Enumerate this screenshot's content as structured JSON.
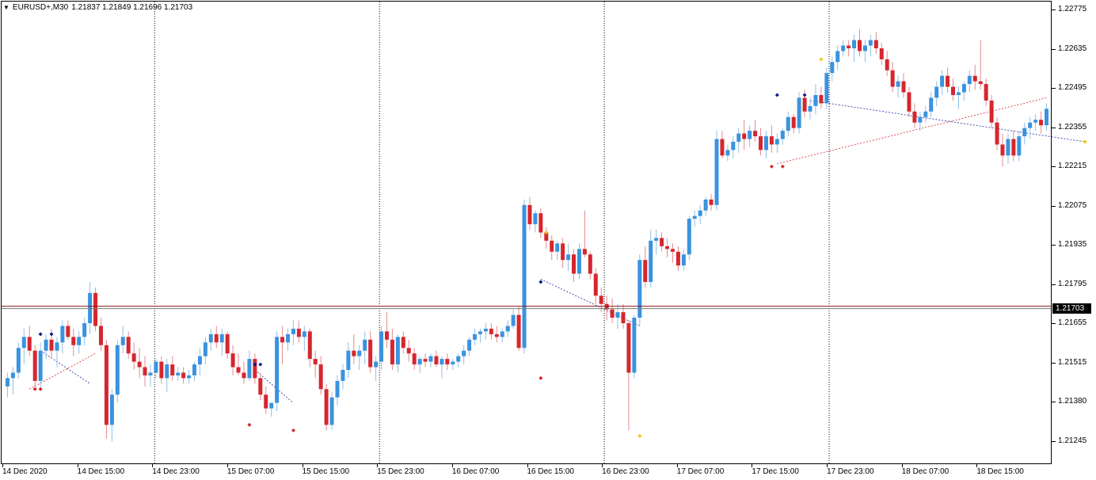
{
  "header": {
    "symbol_timeframe": "EURUSD+,M30",
    "ohlc": "1.21837 1.21849 1.21696 1.21703",
    "menu_glyph": "▼"
  },
  "colors": {
    "bull": "#3a93df",
    "bear": "#d6262e",
    "grid": "#000000",
    "bid_line": "#8b1a1a",
    "ask_line": "#7a7a7a",
    "fractal_up": "#0a1a8c",
    "fractal_down": "#d6262e",
    "marker_yellow": "#f2c200",
    "trend_blue": "#1b2aa0",
    "trend_red": "#d6262e"
  },
  "price_axis": {
    "ticks": [
      "1.22775",
      "1.22635",
      "1.22495",
      "1.22355",
      "1.22215",
      "1.22075",
      "1.21935",
      "1.21795",
      "1.21655",
      "1.21515",
      "1.21380",
      "1.21245"
    ],
    "current_bid": "1.21703"
  },
  "time_axis": {
    "labels": [
      "14 Dec 2020",
      "14 Dec 15:00",
      "14 Dec 23:00",
      "15 Dec 07:00",
      "15 Dec 15:00",
      "15 Dec 23:00",
      "16 Dec 07:00",
      "16 Dec 15:00",
      "16 Dec 23:00",
      "17 Dec 07:00",
      "17 Dec 15:00",
      "17 Dec 23:00",
      "18 Dec 07:00",
      "18 Dec 15:00"
    ]
  },
  "chart_data": {
    "type": "candlestick",
    "symbol": "EURUSD+",
    "timeframe": "M30",
    "last_bar": {
      "open": 1.21837,
      "high": 1.21849,
      "low": 1.21696,
      "close": 1.21703
    },
    "current_price": 1.21703,
    "y_range": [
      1.2114,
      1.2282
    ],
    "day_separators_at": [
      "14 Dec 23:00",
      "15 Dec 23:00",
      "16 Dec 23:00",
      "17 Dec 23:00"
    ],
    "candles": [
      [
        1.2142,
        1.2147,
        1.2138,
        1.2145
      ],
      [
        1.2145,
        1.2149,
        1.2139,
        1.2147
      ],
      [
        1.2147,
        1.2158,
        1.2145,
        1.2156
      ],
      [
        1.2156,
        1.2163,
        1.215,
        1.216
      ],
      [
        1.216,
        1.2164,
        1.2153,
        1.2155
      ],
      [
        1.2155,
        1.2157,
        1.2141,
        1.2144
      ],
      [
        1.2144,
        1.2158,
        1.2141,
        1.2155
      ],
      [
        1.2155,
        1.2161,
        1.2152,
        1.2159
      ],
      [
        1.2159,
        1.2163,
        1.2152,
        1.2155
      ],
      [
        1.2155,
        1.216,
        1.2149,
        1.2158
      ],
      [
        1.2158,
        1.2166,
        1.2154,
        1.2164
      ],
      [
        1.2164,
        1.2166,
        1.2159,
        1.216
      ],
      [
        1.216,
        1.2163,
        1.2153,
        1.2157
      ],
      [
        1.2157,
        1.2162,
        1.2154,
        1.216
      ],
      [
        1.216,
        1.2167,
        1.2157,
        1.2165
      ],
      [
        1.2165,
        1.218,
        1.2161,
        1.2176
      ],
      [
        1.2176,
        1.2178,
        1.2162,
        1.2164
      ],
      [
        1.2164,
        1.2167,
        1.2155,
        1.2157
      ],
      [
        1.2157,
        1.2159,
        1.2123,
        1.2128
      ],
      [
        1.2128,
        1.2141,
        1.2122,
        1.2139
      ],
      [
        1.2139,
        1.2159,
        1.2136,
        1.2157
      ],
      [
        1.2157,
        1.2164,
        1.2154,
        1.216
      ],
      [
        1.216,
        1.2162,
        1.2152,
        1.2154
      ],
      [
        1.2154,
        1.2158,
        1.2148,
        1.2151
      ],
      [
        1.2151,
        1.2156,
        1.2145,
        1.2149
      ],
      [
        1.2149,
        1.2153,
        1.2142,
        1.2146
      ],
      [
        1.2146,
        1.215,
        1.2142,
        1.2147
      ],
      [
        1.2147,
        1.2152,
        1.2145,
        1.2151
      ],
      [
        1.2151,
        1.2153,
        1.2143,
        1.2145
      ],
      [
        1.2145,
        1.2152,
        1.214,
        1.215
      ],
      [
        1.215,
        1.2153,
        1.2144,
        1.2146
      ],
      [
        1.2146,
        1.2149,
        1.2144,
        1.2147
      ],
      [
        1.2147,
        1.2149,
        1.2143,
        1.2145
      ],
      [
        1.2145,
        1.2148,
        1.2143,
        1.2146
      ],
      [
        1.2146,
        1.2151,
        1.2144,
        1.215
      ],
      [
        1.215,
        1.2156,
        1.2146,
        1.2153
      ],
      [
        1.2153,
        1.216,
        1.215,
        1.2158
      ],
      [
        1.2158,
        1.2163,
        1.2155,
        1.2161
      ],
      [
        1.2161,
        1.2164,
        1.2156,
        1.2158
      ],
      [
        1.2158,
        1.2163,
        1.2153,
        1.2161
      ],
      [
        1.2161,
        1.2162,
        1.2152,
        1.2154
      ],
      [
        1.2154,
        1.2157,
        1.2146,
        1.2149
      ],
      [
        1.2149,
        1.2154,
        1.2146,
        1.2147
      ],
      [
        1.2147,
        1.2151,
        1.2143,
        1.2145
      ],
      [
        1.2145,
        1.2155,
        1.2144,
        1.2152
      ],
      [
        1.2152,
        1.2154,
        1.2143,
        1.2145
      ],
      [
        1.2145,
        1.2147,
        1.2137,
        1.2139
      ],
      [
        1.2139,
        1.2142,
        1.2132,
        1.2134
      ],
      [
        1.2134,
        1.2136,
        1.2131,
        1.2136
      ],
      [
        1.2136,
        1.2162,
        1.2133,
        1.216
      ],
      [
        1.216,
        1.2164,
        1.215,
        1.2158
      ],
      [
        1.2158,
        1.2163,
        1.2155,
        1.2161
      ],
      [
        1.2161,
        1.2166,
        1.2157,
        1.2163
      ],
      [
        1.2163,
        1.2166,
        1.2158,
        1.216
      ],
      [
        1.216,
        1.2164,
        1.2155,
        1.2162
      ],
      [
        1.2162,
        1.2163,
        1.2149,
        1.2152
      ],
      [
        1.2152,
        1.2155,
        1.2145,
        1.215
      ],
      [
        1.215,
        1.2153,
        1.2139,
        1.2141
      ],
      [
        1.2141,
        1.2143,
        1.2126,
        1.2128
      ],
      [
        1.2128,
        1.214,
        1.2126,
        1.2138
      ],
      [
        1.2138,
        1.2146,
        1.2135,
        1.2144
      ],
      [
        1.2144,
        1.215,
        1.2141,
        1.2148
      ],
      [
        1.2148,
        1.2158,
        1.2145,
        1.2155
      ],
      [
        1.2155,
        1.2161,
        1.215,
        1.2153
      ],
      [
        1.2153,
        1.2157,
        1.2148,
        1.2155
      ],
      [
        1.2155,
        1.2162,
        1.215,
        1.2159
      ],
      [
        1.2159,
        1.2162,
        1.2147,
        1.2149
      ],
      [
        1.2149,
        1.2153,
        1.2144,
        1.2151
      ],
      [
        1.2151,
        1.2164,
        1.2148,
        1.2162
      ],
      [
        1.2162,
        1.2169,
        1.2156,
        1.2159
      ],
      [
        1.2159,
        1.2163,
        1.2148,
        1.215
      ],
      [
        1.215,
        1.2161,
        1.2147,
        1.216
      ],
      [
        1.216,
        1.2162,
        1.2154,
        1.2156
      ],
      [
        1.2156,
        1.2159,
        1.2151,
        1.2154
      ],
      [
        1.2154,
        1.2156,
        1.2148,
        1.215
      ],
      [
        1.215,
        1.2153,
        1.2147,
        1.2152
      ],
      [
        1.2152,
        1.2154,
        1.2149,
        1.2151
      ],
      [
        1.2151,
        1.2154,
        1.2149,
        1.2153
      ],
      [
        1.2153,
        1.2155,
        1.2149,
        1.215
      ],
      [
        1.215,
        1.2153,
        1.2145,
        1.2152
      ],
      [
        1.2152,
        1.2154,
        1.2148,
        1.215
      ],
      [
        1.215,
        1.2152,
        1.2148,
        1.2151
      ],
      [
        1.2151,
        1.2154,
        1.2149,
        1.2153
      ],
      [
        1.2153,
        1.2157,
        1.215,
        1.2155
      ],
      [
        1.2155,
        1.216,
        1.2153,
        1.2159
      ],
      [
        1.2159,
        1.2163,
        1.2157,
        1.2161
      ],
      [
        1.2161,
        1.2163,
        1.2158,
        1.2162
      ],
      [
        1.2162,
        1.2165,
        1.2159,
        1.2163
      ],
      [
        1.2163,
        1.2165,
        1.2159,
        1.2161
      ],
      [
        1.2161,
        1.2164,
        1.2158,
        1.216
      ],
      [
        1.216,
        1.2163,
        1.2158,
        1.2162
      ],
      [
        1.2162,
        1.2166,
        1.216,
        1.2164
      ],
      [
        1.2164,
        1.217,
        1.2163,
        1.2168
      ],
      [
        1.2168,
        1.2171,
        1.2155,
        1.2156
      ],
      [
        1.2156,
        1.221,
        1.2154,
        1.2208
      ],
      [
        1.2208,
        1.2211,
        1.2199,
        1.2201
      ],
      [
        1.2201,
        1.2206,
        1.2198,
        1.2205
      ],
      [
        1.2205,
        1.2207,
        1.2196,
        1.2198
      ],
      [
        1.2198,
        1.22,
        1.2192,
        1.2195
      ],
      [
        1.2195,
        1.2197,
        1.2188,
        1.2191
      ],
      [
        1.2191,
        1.2195,
        1.2188,
        1.2194
      ],
      [
        1.2194,
        1.2196,
        1.2185,
        1.2188
      ],
      [
        1.2188,
        1.2194,
        1.2184,
        1.219
      ],
      [
        1.219,
        1.2192,
        1.218,
        1.2183
      ],
      [
        1.2183,
        1.2194,
        1.2181,
        1.2192
      ],
      [
        1.2192,
        1.2206,
        1.2189,
        1.219
      ],
      [
        1.219,
        1.2191,
        1.2181,
        1.2183
      ],
      [
        1.2183,
        1.2185,
        1.2172,
        1.2175
      ],
      [
        1.2175,
        1.2178,
        1.2169,
        1.2172
      ],
      [
        1.2172,
        1.2175,
        1.2166,
        1.217
      ],
      [
        1.217,
        1.2174,
        1.2165,
        1.2167
      ],
      [
        1.2167,
        1.2172,
        1.2163,
        1.2169
      ],
      [
        1.2169,
        1.2172,
        1.2163,
        1.2165
      ],
      [
        1.2165,
        1.2166,
        1.2126,
        1.2147
      ],
      [
        1.2147,
        1.2168,
        1.2145,
        1.2167
      ],
      [
        1.2167,
        1.219,
        1.2164,
        1.2188
      ],
      [
        1.2188,
        1.2193,
        1.2178,
        1.218
      ],
      [
        1.218,
        1.2199,
        1.2178,
        1.2195
      ],
      [
        1.2195,
        1.2199,
        1.219,
        1.2196
      ],
      [
        1.2196,
        1.2198,
        1.2191,
        1.2193
      ],
      [
        1.2193,
        1.2196,
        1.2189,
        1.2192
      ],
      [
        1.2192,
        1.2194,
        1.2187,
        1.2191
      ],
      [
        1.2191,
        1.2193,
        1.2184,
        1.2186
      ],
      [
        1.2186,
        1.2192,
        1.2184,
        1.219
      ],
      [
        1.219,
        1.2204,
        1.2188,
        1.2203
      ],
      [
        1.2203,
        1.2206,
        1.22,
        1.2204
      ],
      [
        1.2204,
        1.2208,
        1.2201,
        1.2206
      ],
      [
        1.2206,
        1.2211,
        1.2204,
        1.221
      ],
      [
        1.221,
        1.2212,
        1.2206,
        1.2208
      ],
      [
        1.2208,
        1.2235,
        1.2206,
        1.2232
      ],
      [
        1.2232,
        1.2235,
        1.2225,
        1.2226
      ],
      [
        1.2226,
        1.223,
        1.2224,
        1.2228
      ],
      [
        1.2228,
        1.2233,
        1.2225,
        1.2231
      ],
      [
        1.2231,
        1.2236,
        1.2227,
        1.2234
      ],
      [
        1.2234,
        1.2239,
        1.2228,
        1.2232
      ],
      [
        1.2232,
        1.2237,
        1.2229,
        1.2235
      ],
      [
        1.2235,
        1.2239,
        1.2231,
        1.2233
      ],
      [
        1.2233,
        1.2236,
        1.2226,
        1.2228
      ],
      [
        1.2228,
        1.2235,
        1.2225,
        1.2233
      ],
      [
        1.2233,
        1.2237,
        1.2227,
        1.223
      ],
      [
        1.223,
        1.2234,
        1.2227,
        1.2232
      ],
      [
        1.2232,
        1.2236,
        1.223,
        1.2235
      ],
      [
        1.2235,
        1.2242,
        1.2233,
        1.224
      ],
      [
        1.224,
        1.2241,
        1.2234,
        1.2236
      ],
      [
        1.2236,
        1.2249,
        1.2234,
        1.2247
      ],
      [
        1.2247,
        1.225,
        1.224,
        1.2242
      ],
      [
        1.2242,
        1.2247,
        1.2239,
        1.2244
      ],
      [
        1.2244,
        1.2252,
        1.2241,
        1.2248
      ],
      [
        1.2248,
        1.2251,
        1.2243,
        1.2245
      ],
      [
        1.2245,
        1.2258,
        1.2243,
        1.2256
      ],
      [
        1.2256,
        1.2262,
        1.2253,
        1.226
      ],
      [
        1.226,
        1.2266,
        1.2257,
        1.2264
      ],
      [
        1.2264,
        1.2268,
        1.2262,
        1.2266
      ],
      [
        1.2266,
        1.2268,
        1.2262,
        1.2265
      ],
      [
        1.2265,
        1.227,
        1.226,
        1.2268
      ],
      [
        1.2268,
        1.2272,
        1.2262,
        1.2264
      ],
      [
        1.2264,
        1.2268,
        1.226,
        1.2266
      ],
      [
        1.2266,
        1.227,
        1.2262,
        1.2268
      ],
      [
        1.2268,
        1.2271,
        1.2263,
        1.2265
      ],
      [
        1.2265,
        1.2267,
        1.2259,
        1.2261
      ],
      [
        1.2261,
        1.2264,
        1.2255,
        1.2257
      ],
      [
        1.2257,
        1.226,
        1.2249,
        1.2251
      ],
      [
        1.2251,
        1.2255,
        1.2247,
        1.2253
      ],
      [
        1.2253,
        1.2256,
        1.2247,
        1.2249
      ],
      [
        1.2249,
        1.2251,
        1.224,
        1.2242
      ],
      [
        1.2242,
        1.2245,
        1.2236,
        1.2238
      ],
      [
        1.2238,
        1.2242,
        1.2235,
        1.224
      ],
      [
        1.224,
        1.2244,
        1.2238,
        1.2242
      ],
      [
        1.2242,
        1.2249,
        1.224,
        1.2247
      ],
      [
        1.2247,
        1.2253,
        1.2244,
        1.2251
      ],
      [
        1.2251,
        1.2257,
        1.2248,
        1.2255
      ],
      [
        1.2255,
        1.2258,
        1.2249,
        1.2251
      ],
      [
        1.2251,
        1.2254,
        1.2246,
        1.2248
      ],
      [
        1.2248,
        1.2251,
        1.2243,
        1.2249
      ],
      [
        1.2249,
        1.2253,
        1.2246,
        1.2252
      ],
      [
        1.2252,
        1.2257,
        1.2249,
        1.2255
      ],
      [
        1.2255,
        1.2259,
        1.225,
        1.2253
      ],
      [
        1.2253,
        1.2268,
        1.225,
        1.2252
      ],
      [
        1.2252,
        1.2254,
        1.2244,
        1.2246
      ],
      [
        1.2246,
        1.2248,
        1.2236,
        1.2238
      ],
      [
        1.2238,
        1.224,
        1.2228,
        1.223
      ],
      [
        1.223,
        1.2234,
        1.2222,
        1.2226
      ],
      [
        1.2226,
        1.2234,
        1.2223,
        1.2232
      ],
      [
        1.2232,
        1.2235,
        1.2224,
        1.2226
      ],
      [
        1.2226,
        1.2235,
        1.2224,
        1.2233
      ],
      [
        1.2233,
        1.2238,
        1.223,
        1.2236
      ],
      [
        1.2236,
        1.224,
        1.2232,
        1.2238
      ],
      [
        1.2238,
        1.2241,
        1.2235,
        1.2239
      ],
      [
        1.2239,
        1.2242,
        1.2234,
        1.2237
      ],
      [
        1.2237,
        1.2245,
        1.2235,
        1.2243
      ]
    ]
  }
}
